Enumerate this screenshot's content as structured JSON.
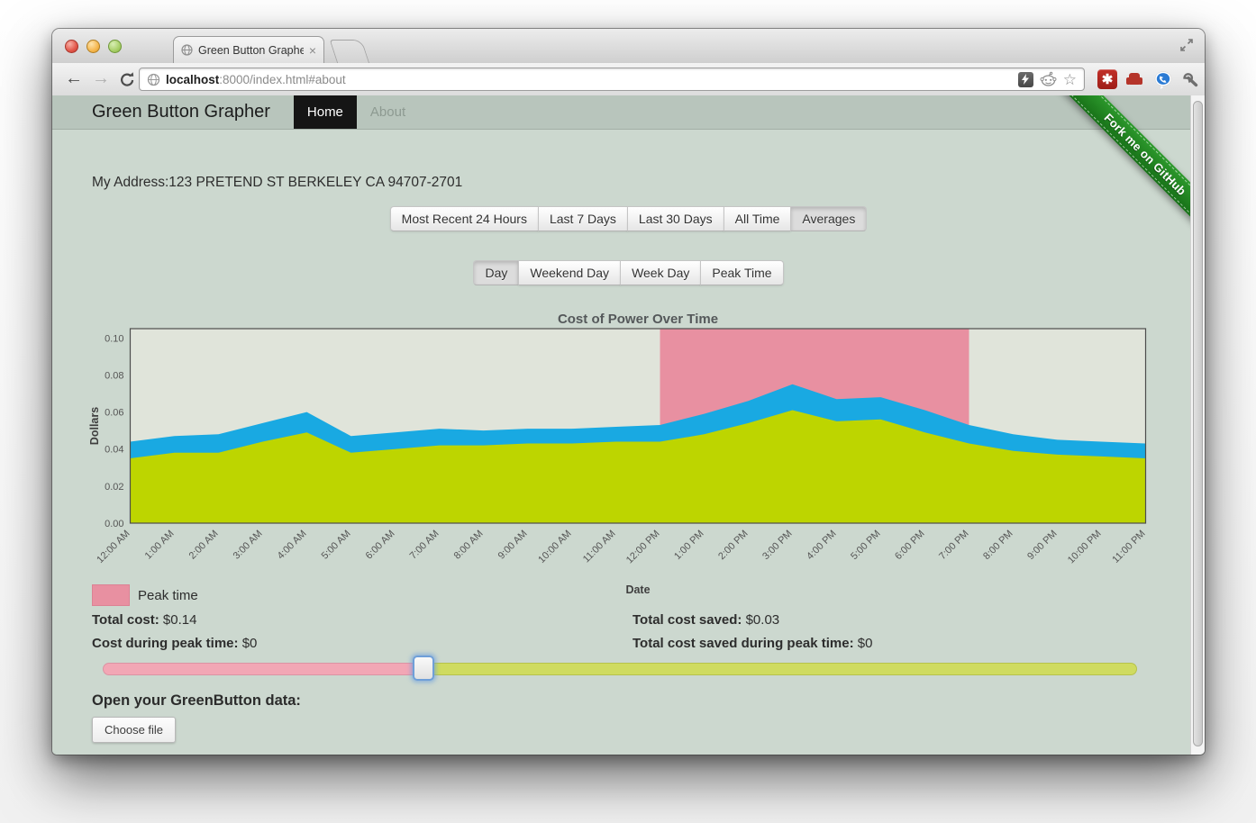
{
  "browser": {
    "tab": {
      "title": "Green Button Grapher"
    },
    "url": {
      "host": "localhost",
      "rest": ":8000/index.html#about"
    },
    "icons": {
      "back": "←",
      "forward": "→",
      "tab_close": "×",
      "lastpass": "✱",
      "bookmark_star": "☆"
    }
  },
  "navbar": {
    "brand": "Green Button Grapher",
    "items": [
      {
        "label": "Home",
        "active": true
      },
      {
        "label": "About",
        "active": false
      }
    ]
  },
  "ribbon": {
    "label": "Fork me on GitHub",
    "color": "#1e7e1e"
  },
  "main": {
    "address_line": "My Address:123 PRETEND ST BERKELEY CA 94707-2701",
    "range_buttons": [
      "Most Recent 24 Hours",
      "Last 7 Days",
      "Last 30 Days",
      "All Time",
      "Averages"
    ],
    "range_active": "Averages",
    "day_buttons": [
      "Day",
      "Weekend Day",
      "Week Day",
      "Peak Time"
    ],
    "day_active": "Day",
    "legend": {
      "label": "Peak time",
      "color": "#e890a1"
    },
    "totals": {
      "left": [
        {
          "label": "Total cost:",
          "value": "$0.14"
        },
        {
          "label": "Cost during peak time:",
          "value": "$0"
        }
      ],
      "right": [
        {
          "label": "Total cost saved:",
          "value": "$0.03"
        },
        {
          "label": "Total cost saved during peak time:",
          "value": "$0"
        }
      ]
    },
    "slider": {
      "position_pct": 31,
      "left_color": "#f2a7b5",
      "right_color": "#cfdb60"
    },
    "open_heading": "Open your GreenButton data:",
    "choose_file_label": "Choose file"
  },
  "chart_data": {
    "type": "area",
    "title": "Cost of Power Over Time",
    "xlabel": "Date",
    "ylabel": "Dollars",
    "ylim": [
      0,
      0.105
    ],
    "yticks": [
      0.0,
      0.02,
      0.04,
      0.06,
      0.08,
      0.1
    ],
    "plot_bg": "#e0e4da",
    "grid": false,
    "categories": [
      "12:00 AM",
      "1:00 AM",
      "2:00 AM",
      "3:00 AM",
      "4:00 AM",
      "5:00 AM",
      "6:00 AM",
      "7:00 AM",
      "8:00 AM",
      "9:00 AM",
      "10:00 AM",
      "11:00 AM",
      "12:00 PM",
      "1:00 PM",
      "2:00 PM",
      "3:00 PM",
      "4:00 PM",
      "5:00 PM",
      "6:00 PM",
      "7:00 PM",
      "8:00 PM",
      "9:00 PM",
      "10:00 PM",
      "11:00 PM"
    ],
    "series": [
      {
        "name": "blue-band-top",
        "color": "#19a9e2",
        "values": [
          0.044,
          0.047,
          0.048,
          0.054,
          0.06,
          0.047,
          0.049,
          0.051,
          0.05,
          0.051,
          0.051,
          0.052,
          0.053,
          0.059,
          0.066,
          0.075,
          0.067,
          0.068,
          0.061,
          0.053,
          0.048,
          0.045,
          0.044,
          0.043
        ]
      },
      {
        "name": "green-area-top",
        "color": "#bdd500",
        "values": [
          0.035,
          0.038,
          0.038,
          0.044,
          0.049,
          0.038,
          0.04,
          0.042,
          0.042,
          0.043,
          0.043,
          0.044,
          0.044,
          0.048,
          0.054,
          0.061,
          0.055,
          0.056,
          0.049,
          0.043,
          0.039,
          0.037,
          0.036,
          0.035
        ]
      }
    ],
    "peak_region": {
      "label": "Peak time",
      "color": "#e890a1",
      "start_index": 12,
      "end_index": 19
    },
    "legend": [
      {
        "label": "Peak time",
        "color": "#e890a1",
        "position": "bottom-left"
      }
    ]
  }
}
